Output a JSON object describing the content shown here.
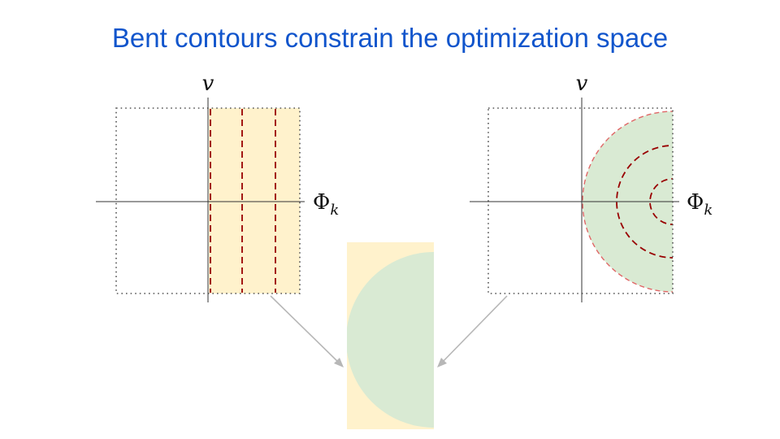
{
  "slide": {
    "title": "Bent contours constrain the optimization space"
  },
  "left_plot": {
    "y_axis_label": "v",
    "x_axis_label_main": "Φ",
    "x_axis_label_sub": "k",
    "region_color": "#fff2cc",
    "contour_color": "#990000"
  },
  "right_plot": {
    "y_axis_label": "v",
    "x_axis_label_main": "Φ",
    "x_axis_label_sub": "k",
    "region_color": "#d9ead3",
    "contour_color": "#990000",
    "boundary_color": "#e06666"
  },
  "intersection": {
    "left_region_color": "#fff2cc",
    "right_region_color": "#d9ead3",
    "arrow_color": "#b7b7b7"
  }
}
